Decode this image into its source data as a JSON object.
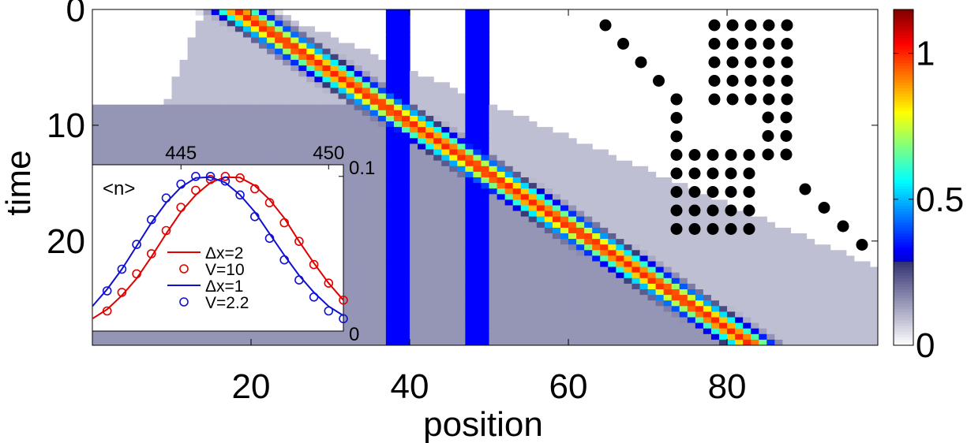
{
  "chart_data": [
    {
      "id": "main-heatmap",
      "type": "heatmap",
      "title": "",
      "xlabel": "position",
      "ylabel": "time",
      "xlim": [
        0,
        99
      ],
      "ylim": [
        0,
        29
      ],
      "y_inverted": true,
      "x_ticks": [
        20,
        40,
        60,
        80
      ],
      "y_ticks": [
        0,
        10,
        20
      ],
      "x_tick_labels": [
        "20",
        "40",
        "60",
        "80"
      ],
      "y_tick_labels": [
        "0",
        "10",
        "20"
      ],
      "wavepacket": {
        "peak_density": 1.0,
        "start_center_position": 18,
        "velocity_sites_per_time": 2.25,
        "width_sites": 2.0
      },
      "barriers": [
        {
          "from_position": 37.5,
          "to_position": 40.5
        },
        {
          "from_position": 47.5,
          "to_position": 50.5
        }
      ],
      "background_level": 0.15,
      "colorbar": {
        "min": 0,
        "max": 1.15,
        "ticks": [
          0,
          0.5,
          1
        ],
        "tick_labels": [
          "0",
          "0.5",
          "1"
        ],
        "colormap": "jet-white"
      }
    },
    {
      "id": "inset",
      "type": "line",
      "title": "<n>",
      "x_ticks": [
        445,
        450
      ],
      "x_tick_labels": [
        "445",
        "450"
      ],
      "xlim": [
        442,
        450.5
      ],
      "ylim": [
        0,
        0.1
      ],
      "y_ticks": [
        0,
        0.1
      ],
      "y_tick_labels": [
        "0",
        "0.1"
      ],
      "series": [
        {
          "name": "Δx=2",
          "style": "line",
          "color": "#e00000",
          "center": 447.3,
          "peak": 0.1,
          "sigma": 1.7,
          "x": [
            442.0,
            442.5,
            443.0,
            443.5,
            444.0,
            444.5,
            445.0,
            445.5,
            446.0,
            446.5,
            447.0,
            447.5,
            448.0,
            448.5,
            449.0,
            449.5,
            450.0,
            450.5
          ],
          "values": [
            0.008,
            0.014,
            0.023,
            0.034,
            0.048,
            0.063,
            0.077,
            0.088,
            0.096,
            0.0995,
            0.0992,
            0.094,
            0.085,
            0.073,
            0.058,
            0.044,
            0.031,
            0.02
          ]
        },
        {
          "name": "V=10",
          "style": "marker",
          "color": "#e00000",
          "x": [
            442.5,
            443.0,
            443.5,
            444.0,
            444.5,
            445.0,
            445.5,
            446.0,
            446.5,
            447.0,
            447.5,
            448.0,
            448.5,
            449.0,
            449.5,
            450.0,
            450.5
          ],
          "values": [
            0.013,
            0.025,
            0.037,
            0.05,
            0.065,
            0.08,
            0.091,
            0.098,
            0.1,
            0.099,
            0.092,
            0.083,
            0.07,
            0.058,
            0.043,
            0.031,
            0.02
          ]
        },
        {
          "name": "Δx=1",
          "style": "line",
          "color": "#1010d0",
          "center": 446.7,
          "peak": 0.1,
          "sigma": 1.75,
          "x": [
            442.0,
            442.5,
            443.0,
            443.5,
            444.0,
            444.5,
            445.0,
            445.5,
            446.0,
            446.5,
            447.0,
            447.5,
            448.0,
            448.5,
            449.0,
            449.5,
            450.0,
            450.5
          ],
          "values": [
            0.016,
            0.027,
            0.04,
            0.055,
            0.07,
            0.083,
            0.093,
            0.099,
            0.0995,
            0.096,
            0.088,
            0.077,
            0.063,
            0.049,
            0.036,
            0.025,
            0.016,
            0.01
          ]
        },
        {
          "name": "V=2.2",
          "style": "marker",
          "color": "#1010d0",
          "x": [
            442.5,
            443.0,
            443.5,
            444.0,
            444.5,
            445.0,
            445.5,
            446.0,
            446.5,
            447.0,
            447.5,
            448.0,
            448.5,
            449.0,
            449.5,
            450.0,
            450.5
          ],
          "values": [
            0.026,
            0.04,
            0.056,
            0.072,
            0.086,
            0.095,
            0.1,
            0.1,
            0.097,
            0.088,
            0.074,
            0.06,
            0.046,
            0.033,
            0.022,
            0.013,
            0.008
          ]
        }
      ],
      "legend": [
        "Δx=2",
        "V=10",
        "Δx=1",
        "V=2.2"
      ],
      "legend_position": "bottom-right"
    }
  ],
  "pictogram": {
    "description_label": "",
    "diagonal_dots_left": 5,
    "diagonal_dots_right": 5,
    "grid_blocks": 3
  }
}
